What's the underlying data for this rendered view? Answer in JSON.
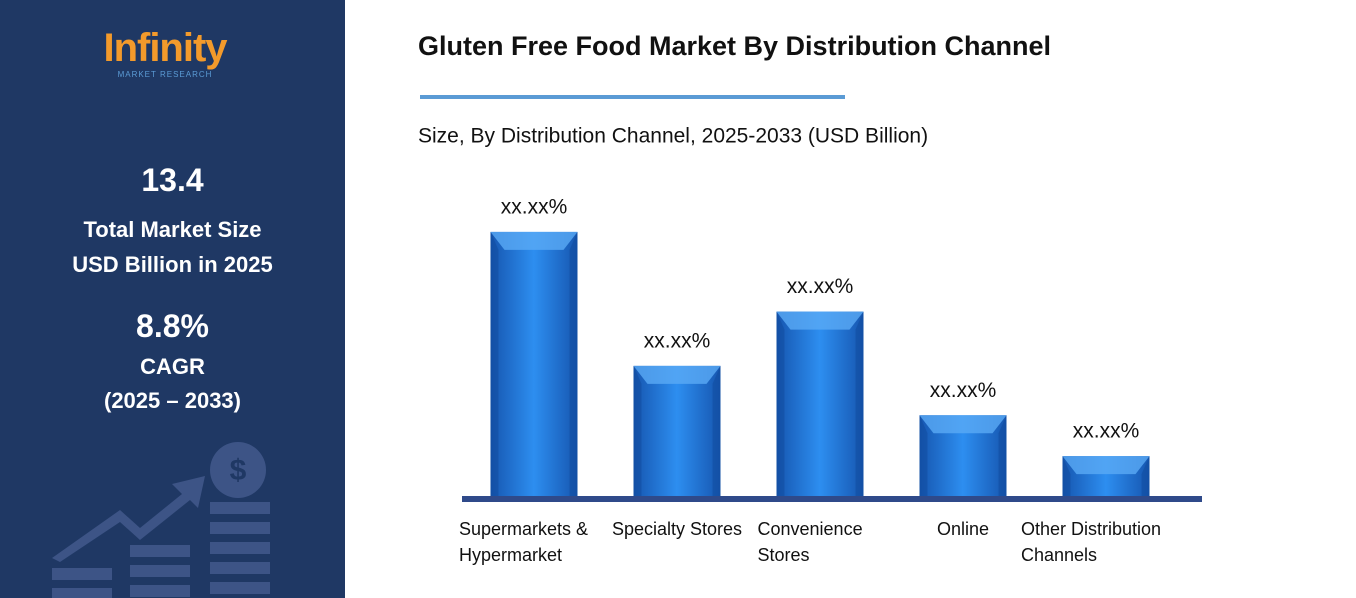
{
  "sidebar": {
    "logo": "Infinity",
    "logo_sub": "MARKET RESEARCH",
    "market_size": "13.4",
    "market_size_label_1": "Total Market Size",
    "market_size_label_2": "USD Billion in 2025",
    "cagr": "8.8%",
    "cagr_label": "CAGR",
    "cagr_period": "(2025 – 2033)"
  },
  "chart_data": {
    "type": "bar",
    "title": "Gluten Free Food Market By Distribution Channel",
    "subtitle": "Size, By Distribution Channel, 2025-2033 (USD Billion)",
    "categories": [
      "Supermarkets & Hypermarket",
      "Specialty Stores",
      "Convenience Stores",
      "Online",
      "Other Distribution Channels"
    ],
    "values": [
      37.6,
      18.6,
      26.3,
      11.6,
      5.8
    ],
    "value_labels": [
      "xx.xx%",
      "xx.xx%",
      "xx.xx%",
      "xx.xx%",
      "xx.xx%"
    ],
    "color": "#1f74d6",
    "ylim": [
      0,
      40
    ]
  }
}
